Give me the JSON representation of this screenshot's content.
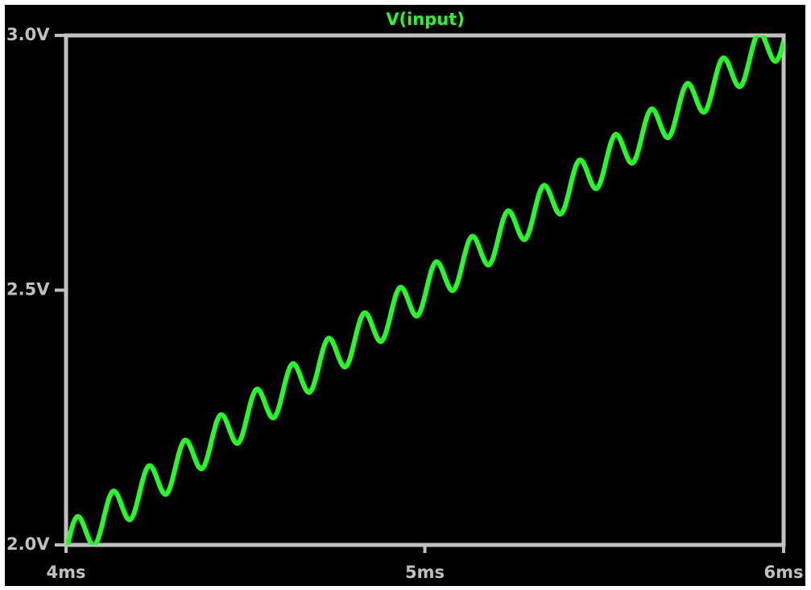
{
  "chart_data": {
    "type": "line",
    "title": "V(input)",
    "color": "#22ff22",
    "x": [
      4,
      4.01,
      4.02,
      4.03,
      4.04,
      4.05,
      4.06,
      4.07,
      4.08,
      4.09,
      4.1,
      4.11,
      4.12,
      4.13,
      4.14,
      4.15,
      4.16,
      4.17,
      4.18,
      4.19,
      4.2,
      4.21,
      4.22,
      4.23,
      4.24,
      4.25,
      4.26,
      4.27,
      4.28,
      4.29,
      4.3,
      4.31,
      4.32,
      4.33,
      4.34,
      4.35,
      4.36,
      4.37,
      4.38,
      4.39,
      4.4,
      4.41,
      4.42,
      4.43,
      4.44,
      4.45,
      4.46,
      4.47,
      4.48,
      4.49,
      4.5,
      4.51,
      4.52,
      4.53,
      4.54,
      4.55,
      4.56,
      4.57,
      4.58,
      4.59,
      4.6,
      4.61,
      4.62,
      4.63,
      4.64,
      4.65,
      4.66,
      4.67,
      4.68,
      4.69,
      4.7,
      4.71,
      4.72,
      4.73,
      4.74,
      4.75,
      4.76,
      4.77,
      4.78,
      4.79,
      4.8,
      4.81,
      4.82,
      4.83,
      4.84,
      4.85,
      4.86,
      4.87,
      4.88,
      4.89,
      4.9,
      4.91,
      4.92,
      4.93,
      4.94,
      4.95,
      4.96,
      4.97,
      4.98,
      4.99,
      5,
      5.01,
      5.02,
      5.03,
      5.04,
      5.05,
      5.06,
      5.07,
      5.08,
      5.09,
      5.1,
      5.11,
      5.12,
      5.13,
      5.14,
      5.15,
      5.16,
      5.17,
      5.18,
      5.19,
      5.2,
      5.21,
      5.22,
      5.23,
      5.24,
      5.25,
      5.26,
      5.27,
      5.28,
      5.29,
      5.3,
      5.31,
      5.32,
      5.33,
      5.34,
      5.35,
      5.36,
      5.37,
      5.38,
      5.39,
      5.4,
      5.41,
      5.42,
      5.43,
      5.44,
      5.45,
      5.46,
      5.47,
      5.48,
      5.49,
      5.5,
      5.51,
      5.52,
      5.53,
      5.54,
      5.55,
      5.56,
      5.57,
      5.58,
      5.59,
      5.6,
      5.61,
      5.62,
      5.63,
      5.64,
      5.65,
      5.66,
      5.67,
      5.68,
      5.69,
      5.7,
      5.71,
      5.72,
      5.73,
      5.74,
      5.75,
      5.76,
      5.77,
      5.78,
      5.79,
      5.8,
      5.81,
      5.82,
      5.83,
      5.84,
      5.85,
      5.86,
      5.87,
      5.88,
      5.89,
      5.9,
      5.91,
      5.92,
      5.93,
      5.94,
      5.95,
      5.96,
      5.97,
      5.98,
      5.99,
      6
    ],
    "values": [
      1.988,
      2.017,
      2.042,
      2.055,
      2.052,
      2.037,
      2.018,
      2.003,
      2.0,
      2.013,
      2.038,
      2.067,
      2.092,
      2.105,
      2.102,
      2.087,
      2.068,
      2.053,
      2.05,
      2.063,
      2.088,
      2.117,
      2.142,
      2.155,
      2.152,
      2.137,
      2.118,
      2.103,
      2.1,
      2.113,
      2.138,
      2.167,
      2.192,
      2.205,
      2.202,
      2.187,
      2.168,
      2.153,
      2.15,
      2.163,
      2.188,
      2.217,
      2.242,
      2.255,
      2.252,
      2.237,
      2.218,
      2.203,
      2.2,
      2.213,
      2.238,
      2.267,
      2.292,
      2.305,
      2.302,
      2.287,
      2.268,
      2.253,
      2.25,
      2.263,
      2.288,
      2.317,
      2.342,
      2.355,
      2.352,
      2.337,
      2.318,
      2.303,
      2.3,
      2.313,
      2.338,
      2.367,
      2.392,
      2.405,
      2.402,
      2.387,
      2.368,
      2.353,
      2.35,
      2.363,
      2.388,
      2.417,
      2.442,
      2.455,
      2.452,
      2.437,
      2.418,
      2.403,
      2.4,
      2.413,
      2.438,
      2.467,
      2.492,
      2.505,
      2.502,
      2.487,
      2.468,
      2.453,
      2.45,
      2.463,
      2.488,
      2.517,
      2.542,
      2.555,
      2.552,
      2.537,
      2.518,
      2.503,
      2.5,
      2.513,
      2.538,
      2.567,
      2.592,
      2.605,
      2.602,
      2.587,
      2.568,
      2.553,
      2.55,
      2.563,
      2.588,
      2.617,
      2.642,
      2.655,
      2.652,
      2.637,
      2.618,
      2.603,
      2.6,
      2.613,
      2.638,
      2.667,
      2.692,
      2.705,
      2.702,
      2.687,
      2.668,
      2.653,
      2.65,
      2.663,
      2.688,
      2.717,
      2.742,
      2.755,
      2.752,
      2.737,
      2.718,
      2.703,
      2.7,
      2.713,
      2.738,
      2.767,
      2.792,
      2.805,
      2.802,
      2.787,
      2.768,
      2.753,
      2.75,
      2.763,
      2.788,
      2.817,
      2.842,
      2.855,
      2.852,
      2.837,
      2.818,
      2.803,
      2.8,
      2.813,
      2.838,
      2.867,
      2.892,
      2.905,
      2.902,
      2.887,
      2.868,
      2.853,
      2.85,
      2.863,
      2.888,
      2.917,
      2.942,
      2.955,
      2.952,
      2.937,
      2.918,
      2.903,
      2.9,
      2.913,
      2.938,
      2.967,
      2.992,
      3.005,
      3.002,
      2.987,
      2.968,
      2.953,
      2.95,
      2.963,
      2.988
    ],
    "xlim": [
      4,
      6
    ],
    "xticks": [
      {
        "value": 4,
        "label": "4ms"
      },
      {
        "value": 5,
        "label": "5ms"
      },
      {
        "value": 6,
        "label": "6ms"
      }
    ],
    "ylim": [
      2,
      3
    ],
    "yticks": [
      {
        "value": 2,
        "label": "2.0V"
      },
      {
        "value": 2.5,
        "label": "2.5V"
      },
      {
        "value": 3,
        "label": "3.0V"
      }
    ]
  }
}
